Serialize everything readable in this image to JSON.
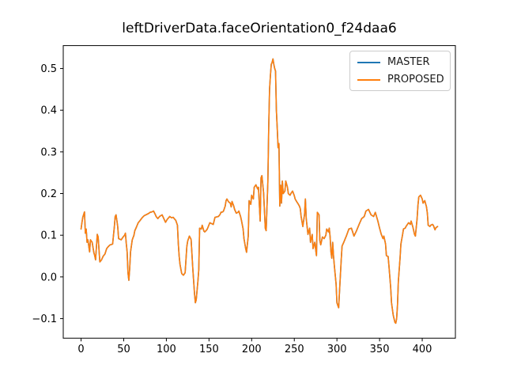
{
  "figure": {
    "background": "#ffffff",
    "axes_edge_color": "#000000",
    "tick_label_color": "#000000"
  },
  "chart_data": {
    "type": "line",
    "title": "leftDriverData.faceOrientation0_f24daa6",
    "xlabel": "",
    "ylabel": "",
    "xlim": [
      -20.9,
      438.9
    ],
    "ylim": [
      -0.147,
      0.555
    ],
    "x_ticks": [
      0,
      50,
      100,
      150,
      200,
      250,
      300,
      350,
      400
    ],
    "x_tick_labels": [
      "0",
      "50",
      "100",
      "150",
      "200",
      "250",
      "300",
      "350",
      "400"
    ],
    "y_ticks": [
      -0.1,
      0.0,
      0.1,
      0.2,
      0.3,
      0.4,
      0.5
    ],
    "y_tick_labels": [
      "−0.1",
      "0.0",
      "0.1",
      "0.2",
      "0.3",
      "0.4",
      "0.5"
    ],
    "grid": false,
    "legend_position": "upper right",
    "series": [
      {
        "name": "MASTER",
        "color": "#1f77b4",
        "note": "fully overlapped by PROPOSED; identical trace"
      },
      {
        "name": "PROPOSED",
        "color": "#ff7f0e"
      }
    ],
    "points": [
      [
        0,
        0.115
      ],
      [
        1,
        0.13
      ],
      [
        2,
        0.143
      ],
      [
        4,
        0.156
      ],
      [
        5,
        0.105
      ],
      [
        6,
        0.115
      ],
      [
        7,
        0.083
      ],
      [
        8,
        0.089
      ],
      [
        10,
        0.06
      ],
      [
        11,
        0.089
      ],
      [
        13,
        0.083
      ],
      [
        15,
        0.058
      ],
      [
        16,
        0.051
      ],
      [
        17,
        0.041
      ],
      [
        19,
        0.102
      ],
      [
        20,
        0.096
      ],
      [
        22,
        0.036
      ],
      [
        24,
        0.041
      ],
      [
        26,
        0.05
      ],
      [
        28,
        0.055
      ],
      [
        30,
        0.068
      ],
      [
        32,
        0.073
      ],
      [
        34,
        0.077
      ],
      [
        36,
        0.078
      ],
      [
        37,
        0.079
      ],
      [
        38,
        0.1
      ],
      [
        39,
        0.12
      ],
      [
        40,
        0.145
      ],
      [
        41,
        0.149
      ],
      [
        42,
        0.135
      ],
      [
        43,
        0.12
      ],
      [
        44,
        0.092
      ],
      [
        46,
        0.09
      ],
      [
        47,
        0.089
      ],
      [
        49,
        0.095
      ],
      [
        51,
        0.1
      ],
      [
        52,
        0.105
      ],
      [
        53,
        0.08
      ],
      [
        54,
        0.06
      ],
      [
        55,
        0.01
      ],
      [
        56,
        -0.008
      ],
      [
        57,
        0.02
      ],
      [
        58,
        0.06
      ],
      [
        60,
        0.089
      ],
      [
        62,
        0.1
      ],
      [
        63,
        0.111
      ],
      [
        65,
        0.12
      ],
      [
        67,
        0.13
      ],
      [
        69,
        0.135
      ],
      [
        72,
        0.143
      ],
      [
        74,
        0.147
      ],
      [
        76,
        0.149
      ],
      [
        79,
        0.152
      ],
      [
        81,
        0.155
      ],
      [
        83,
        0.156
      ],
      [
        85,
        0.158
      ],
      [
        87,
        0.15
      ],
      [
        88,
        0.145
      ],
      [
        90,
        0.14
      ],
      [
        92,
        0.145
      ],
      [
        95,
        0.149
      ],
      [
        97,
        0.14
      ],
      [
        99,
        0.131
      ],
      [
        101,
        0.138
      ],
      [
        104,
        0.145
      ],
      [
        106,
        0.142
      ],
      [
        108,
        0.143
      ],
      [
        110,
        0.138
      ],
      [
        111,
        0.136
      ],
      [
        113,
        0.124
      ],
      [
        114,
        0.08
      ],
      [
        115,
        0.05
      ],
      [
        116,
        0.03
      ],
      [
        118,
        0.008
      ],
      [
        120,
        0.004
      ],
      [
        122,
        0.01
      ],
      [
        124,
        0.073
      ],
      [
        125,
        0.086
      ],
      [
        127,
        0.098
      ],
      [
        129,
        0.09
      ],
      [
        131,
        0.02
      ],
      [
        133,
        -0.04
      ],
      [
        134,
        -0.062
      ],
      [
        135,
        -0.055
      ],
      [
        137,
        -0.01
      ],
      [
        138,
        0.017
      ],
      [
        139,
        0.117
      ],
      [
        141,
        0.115
      ],
      [
        142,
        0.124
      ],
      [
        144,
        0.11
      ],
      [
        145,
        0.108
      ],
      [
        147,
        0.112
      ],
      [
        148,
        0.115
      ],
      [
        150,
        0.125
      ],
      [
        151,
        0.13
      ],
      [
        153,
        0.128
      ],
      [
        155,
        0.126
      ],
      [
        157,
        0.143
      ],
      [
        159,
        0.144
      ],
      [
        161,
        0.145
      ],
      [
        163,
        0.15
      ],
      [
        164,
        0.155
      ],
      [
        166,
        0.156
      ],
      [
        167,
        0.158
      ],
      [
        169,
        0.17
      ],
      [
        170,
        0.183
      ],
      [
        171,
        0.187
      ],
      [
        173,
        0.18
      ],
      [
        175,
        0.177
      ],
      [
        176,
        0.168
      ],
      [
        177,
        0.181
      ],
      [
        179,
        0.17
      ],
      [
        180,
        0.162
      ],
      [
        182,
        0.153
      ],
      [
        184,
        0.155
      ],
      [
        185,
        0.158
      ],
      [
        187,
        0.145
      ],
      [
        188,
        0.136
      ],
      [
        190,
        0.115
      ],
      [
        191,
        0.092
      ],
      [
        193,
        0.068
      ],
      [
        194,
        0.059
      ],
      [
        196,
        0.098
      ],
      [
        197,
        0.183
      ],
      [
        199,
        0.174
      ],
      [
        200,
        0.196
      ],
      [
        202,
        0.187
      ],
      [
        203,
        0.215
      ],
      [
        205,
        0.221
      ],
      [
        207,
        0.211
      ],
      [
        208,
        0.215
      ],
      [
        210,
        0.134
      ],
      [
        211,
        0.238
      ],
      [
        212,
        0.243
      ],
      [
        214,
        0.202
      ],
      [
        216,
        0.117
      ],
      [
        217,
        0.111
      ],
      [
        219,
        0.228
      ],
      [
        220,
        0.357
      ],
      [
        221,
        0.45
      ],
      [
        222,
        0.483
      ],
      [
        223,
        0.51
      ],
      [
        224,
        0.515
      ],
      [
        225,
        0.523
      ],
      [
        226,
        0.51
      ],
      [
        227,
        0.5
      ],
      [
        228,
        0.494
      ],
      [
        229,
        0.4
      ],
      [
        230,
        0.357
      ],
      [
        231,
        0.31
      ],
      [
        232,
        0.32
      ],
      [
        233,
        0.17
      ],
      [
        234,
        0.22
      ],
      [
        235,
        0.177
      ],
      [
        236,
        0.23
      ],
      [
        237,
        0.2
      ],
      [
        239,
        0.206
      ],
      [
        240,
        0.23
      ],
      [
        242,
        0.215
      ],
      [
        243,
        0.2
      ],
      [
        245,
        0.196
      ],
      [
        246,
        0.2
      ],
      [
        248,
        0.206
      ],
      [
        250,
        0.195
      ],
      [
        251,
        0.187
      ],
      [
        253,
        0.18
      ],
      [
        254,
        0.177
      ],
      [
        256,
        0.17
      ],
      [
        257,
        0.164
      ],
      [
        258,
        0.145
      ],
      [
        260,
        0.121
      ],
      [
        262,
        0.15
      ],
      [
        263,
        0.187
      ],
      [
        264,
        0.14
      ],
      [
        266,
        0.102
      ],
      [
        268,
        0.117
      ],
      [
        269,
        0.083
      ],
      [
        271,
        0.102
      ],
      [
        272,
        0.068
      ],
      [
        274,
        0.083
      ],
      [
        276,
        0.051
      ],
      [
        277,
        0.155
      ],
      [
        279,
        0.149
      ],
      [
        280,
        0.087
      ],
      [
        281,
        0.077
      ],
      [
        283,
        0.096
      ],
      [
        285,
        0.092
      ],
      [
        287,
        0.1
      ],
      [
        288,
        0.115
      ],
      [
        290,
        0.108
      ],
      [
        291,
        0.117
      ],
      [
        292,
        0.096
      ],
      [
        293,
        0.06
      ],
      [
        294,
        0.045
      ],
      [
        295,
        0.083
      ],
      [
        296,
        0.05
      ],
      [
        297,
        0.026
      ],
      [
        299,
        -0.017
      ],
      [
        300,
        -0.062
      ],
      [
        302,
        -0.074
      ],
      [
        303,
        -0.036
      ],
      [
        305,
        0.04
      ],
      [
        306,
        0.074
      ],
      [
        308,
        0.083
      ],
      [
        311,
        0.098
      ],
      [
        314,
        0.115
      ],
      [
        317,
        0.117
      ],
      [
        320,
        0.098
      ],
      [
        323,
        0.111
      ],
      [
        326,
        0.126
      ],
      [
        329,
        0.14
      ],
      [
        332,
        0.145
      ],
      [
        334,
        0.158
      ],
      [
        337,
        0.162
      ],
      [
        340,
        0.149
      ],
      [
        343,
        0.145
      ],
      [
        345,
        0.155
      ],
      [
        348,
        0.134
      ],
      [
        350,
        0.117
      ],
      [
        352,
        0.102
      ],
      [
        354,
        0.092
      ],
      [
        355,
        0.098
      ],
      [
        357,
        0.079
      ],
      [
        358,
        0.051
      ],
      [
        360,
        0.049
      ],
      [
        361,
        0.026
      ],
      [
        363,
        -0.025
      ],
      [
        364,
        -0.062
      ],
      [
        366,
        -0.092
      ],
      [
        368,
        -0.109
      ],
      [
        369,
        -0.111
      ],
      [
        370,
        -0.1
      ],
      [
        371,
        -0.068
      ],
      [
        372,
        -0.011
      ],
      [
        374,
        0.045
      ],
      [
        375,
        0.079
      ],
      [
        377,
        0.102
      ],
      [
        378,
        0.115
      ],
      [
        380,
        0.117
      ],
      [
        381,
        0.121
      ],
      [
        384,
        0.13
      ],
      [
        386,
        0.126
      ],
      [
        387,
        0.134
      ],
      [
        389,
        0.12
      ],
      [
        391,
        0.102
      ],
      [
        392,
        0.098
      ],
      [
        394,
        0.14
      ],
      [
        395,
        0.172
      ],
      [
        396,
        0.192
      ],
      [
        398,
        0.196
      ],
      [
        400,
        0.187
      ],
      [
        401,
        0.177
      ],
      [
        403,
        0.183
      ],
      [
        405,
        0.168
      ],
      [
        406,
        0.153
      ],
      [
        407,
        0.124
      ],
      [
        409,
        0.121
      ],
      [
        410,
        0.124
      ],
      [
        412,
        0.126
      ],
      [
        413,
        0.124
      ],
      [
        415,
        0.113
      ],
      [
        416,
        0.118
      ],
      [
        418,
        0.121
      ]
    ]
  }
}
